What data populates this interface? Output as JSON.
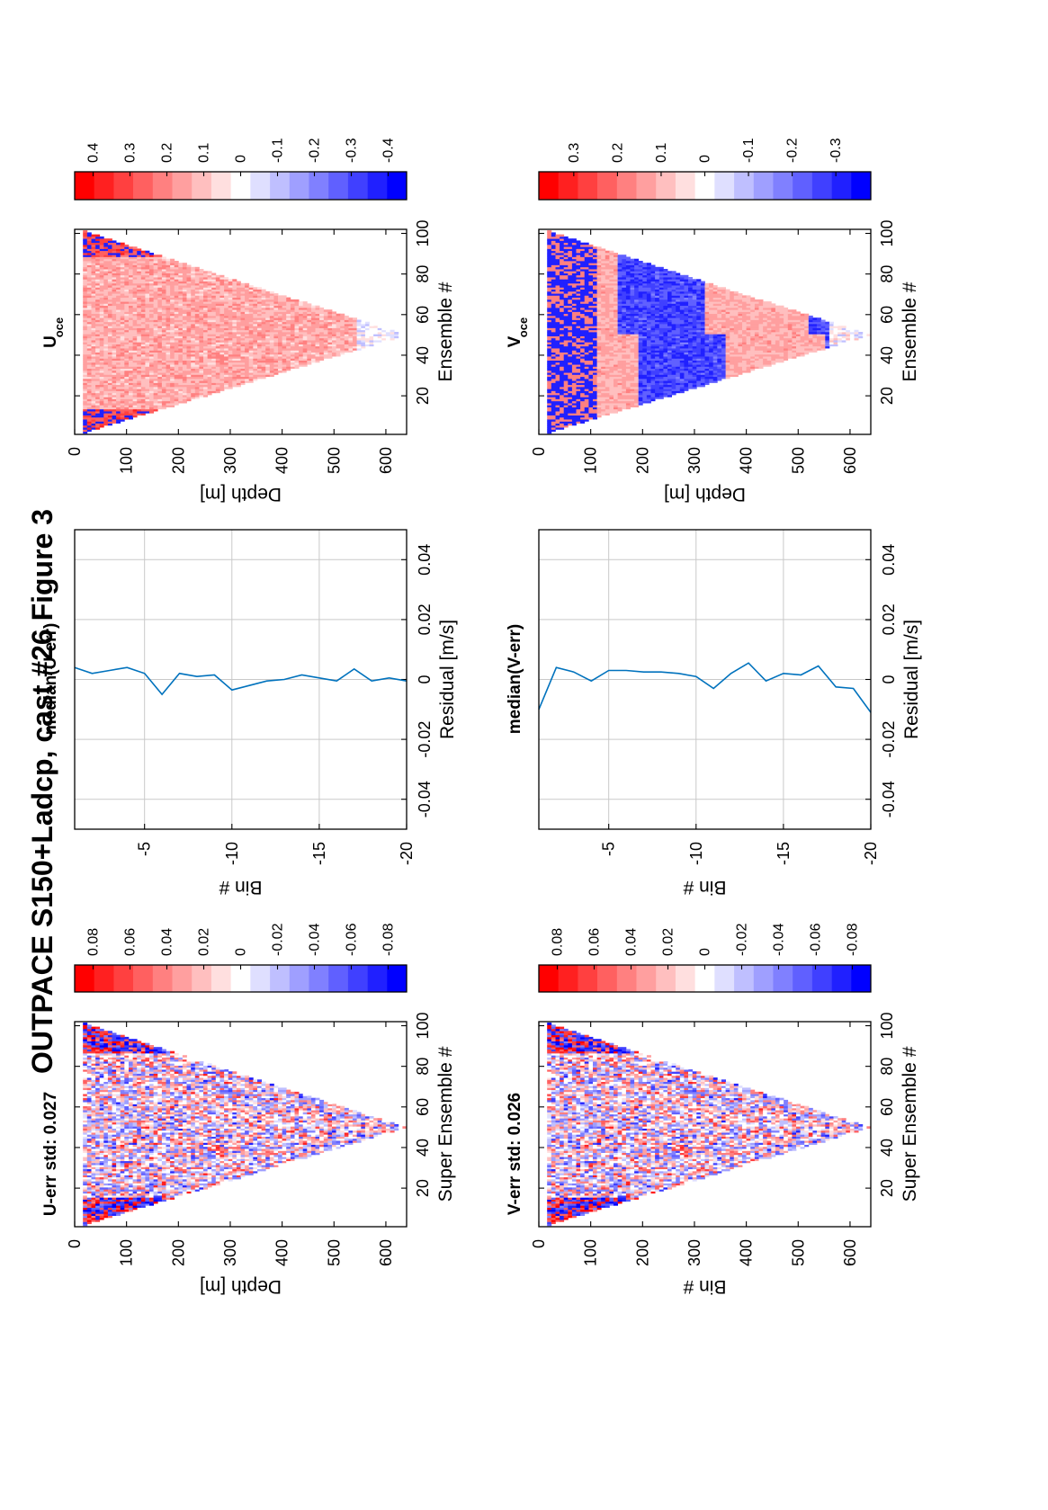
{
  "title": "OUTPACE S150+Ladcp, cast #26  Figure 3",
  "colors": {
    "red": "#ff0000",
    "white": "#ffffff",
    "blue": "#0000ff",
    "line": "#0072bd",
    "grid": "#c9c9c9"
  },
  "chart_data": [
    {
      "id": "u-err",
      "type": "heatmap",
      "title": "U-err std: 0.027",
      "xlabel": "Super Ensemble #",
      "ylabel": "Depth [m]",
      "xlim": [
        1,
        102
      ],
      "ylim": [
        0,
        640
      ],
      "xticks": [
        "20",
        "40",
        "60",
        "80",
        "100"
      ],
      "yticks": [
        "0",
        "100",
        "200",
        "300",
        "400",
        "500",
        "600"
      ],
      "pattern": "v-shaped cast, near-zero residuals with red/blue noise, strong values near surface",
      "amplitude": 0.09,
      "colorbar": {
        "range": [
          -0.09,
          0.09
        ],
        "ticks": [
          "0.08",
          "0.06",
          "0.04",
          "0.02",
          "0",
          "-0.02",
          "-0.04",
          "-0.06",
          "-0.08"
        ]
      }
    },
    {
      "id": "median-u-err",
      "type": "line",
      "title": "median(U-err)",
      "xlabel": "Residual [m/s]",
      "ylabel": "Bin #",
      "xlim": [
        -0.05,
        0.05
      ],
      "ylim": [
        -20,
        -1
      ],
      "xticks": [
        "-0.04",
        "-0.02",
        "0",
        "0.02",
        "0.04"
      ],
      "yticks": [
        "-5",
        "-10",
        "-15",
        "-20"
      ],
      "grid": true,
      "series": [
        {
          "bins": [
            -1,
            -2,
            -3,
            -4,
            -5,
            -6,
            -7,
            -8,
            -9,
            -10,
            -11,
            -12,
            -13,
            -14,
            -15,
            -16,
            -17,
            -18,
            -19,
            -20
          ],
          "values": [
            0.004,
            0.002,
            0.003,
            0.004,
            0.002,
            -0.005,
            0.002,
            0.001,
            0.0015,
            -0.0035,
            -0.002,
            -0.0005,
            0,
            0.0015,
            0.0005,
            -0.0005,
            0.0035,
            -0.0005,
            0.0005,
            -0.0005
          ]
        }
      ]
    },
    {
      "id": "u-oce",
      "type": "heatmap",
      "title": "U",
      "title_sub": "oce",
      "xlabel": "Ensemble #",
      "ylabel": "Depth [m]",
      "xlim": [
        1,
        102
      ],
      "ylim": [
        0,
        640
      ],
      "xticks": [
        "20",
        "40",
        "60",
        "80",
        "100"
      ],
      "yticks": [
        "0",
        "100",
        "200",
        "300",
        "400",
        "500",
        "600"
      ],
      "pattern": "v-shaped cast, mostly light red values, blue patches near surface and white near bottom",
      "amplitude": 0.4,
      "colorbar": {
        "range": [
          -0.45,
          0.45
        ],
        "ticks": [
          "0.4",
          "0.3",
          "0.2",
          "0.1",
          "0",
          "-0.1",
          "-0.2",
          "-0.3",
          "-0.4"
        ]
      }
    },
    {
      "id": "v-err",
      "type": "heatmap",
      "title": "V-err std: 0.026",
      "xlabel": "Super Ensemble #",
      "ylabel": "Bin #",
      "xlim": [
        1,
        102
      ],
      "ylim": [
        0,
        640
      ],
      "xticks": [
        "20",
        "40",
        "60",
        "80",
        "100"
      ],
      "yticks": [
        "0",
        "100",
        "200",
        "300",
        "400",
        "500",
        "600"
      ],
      "pattern": "v-shaped cast, near-zero residuals with red/blue noise, strong values near surface",
      "amplitude": 0.09,
      "colorbar": {
        "range": [
          -0.09,
          0.09
        ],
        "ticks": [
          "0.08",
          "0.06",
          "0.04",
          "0.02",
          "0",
          "-0.02",
          "-0.04",
          "-0.06",
          "-0.08"
        ]
      }
    },
    {
      "id": "median-v-err",
      "type": "line",
      "title": "median(V-err)",
      "xlabel": "Residual [m/s]",
      "ylabel": "Bin #",
      "xlim": [
        -0.05,
        0.05
      ],
      "ylim": [
        -20,
        -1
      ],
      "xticks": [
        "-0.04",
        "-0.02",
        "0",
        "0.02",
        "0.04"
      ],
      "yticks": [
        "-5",
        "-10",
        "-15",
        "-20"
      ],
      "grid": true,
      "series": [
        {
          "bins": [
            -1,
            -2,
            -3,
            -4,
            -5,
            -6,
            -7,
            -8,
            -9,
            -10,
            -11,
            -12,
            -13,
            -14,
            -15,
            -16,
            -17,
            -18,
            -19,
            -20
          ],
          "values": [
            -0.01,
            0.004,
            0.0025,
            -0.0005,
            0.003,
            0.003,
            0.0025,
            0.0025,
            0.002,
            0.001,
            -0.003,
            0.002,
            0.0055,
            -0.0005,
            0.002,
            0.0015,
            0.0045,
            -0.0025,
            -0.003,
            -0.011
          ]
        }
      ]
    },
    {
      "id": "v-oce",
      "type": "heatmap",
      "title": "V",
      "title_sub": "oce",
      "xlabel": "Ensemble #",
      "ylabel": "Depth [m]",
      "xlim": [
        1,
        102
      ],
      "ylim": [
        0,
        640
      ],
      "xticks": [
        "20",
        "40",
        "60",
        "80",
        "100"
      ],
      "yticks": [
        "0",
        "100",
        "200",
        "300",
        "400",
        "500",
        "600"
      ],
      "pattern": "v-shaped cast with alternating blue and light red bands with depth",
      "amplitude": 0.35,
      "colorbar": {
        "range": [
          -0.38,
          0.38
        ],
        "ticks": [
          "0.3",
          "0.2",
          "0.1",
          "0",
          "-0.1",
          "-0.2",
          "-0.3"
        ]
      }
    }
  ]
}
